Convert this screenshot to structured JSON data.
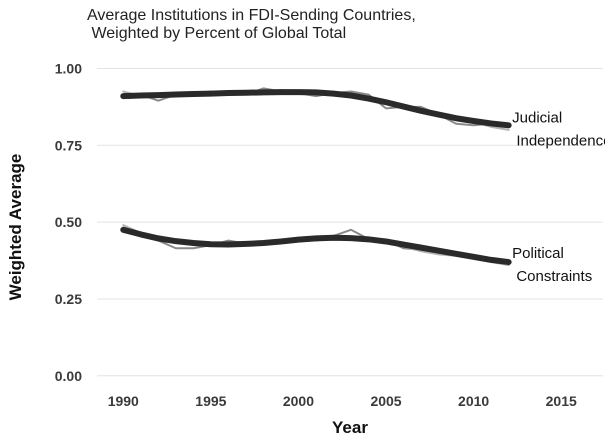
{
  "chart_data": {
    "type": "line",
    "title_lines": [
      "Average Institutions in FDI-Sending Countries,",
      " Weighted by Percent of Global Total"
    ],
    "xlabel": "Year",
    "ylabel": "Weighted Average",
    "xlim": [
      1988.5,
      2017.5
    ],
    "ylim": [
      -0.03,
      1.06
    ],
    "x_ticks": [
      1990,
      1995,
      2000,
      2005,
      2010,
      2015
    ],
    "y_ticks": [
      0.0,
      0.25,
      0.5,
      0.75,
      1.0
    ],
    "x_tick_labels": [
      "1990",
      "1995",
      "2000",
      "2005",
      "2010",
      "2015"
    ],
    "y_tick_labels": [
      "0.00",
      "0.25",
      "0.50",
      "0.75",
      "1.00"
    ],
    "grid": "horizontal",
    "legend": "none",
    "series": [
      {
        "name": "Judicial Independence",
        "style": "raw",
        "color": "#8a8a8a",
        "x": [
          1990,
          1991,
          1992,
          1993,
          1994,
          1995,
          1996,
          1997,
          1998,
          1999,
          2000,
          2001,
          2002,
          2003,
          2004,
          2005,
          2006,
          2007,
          2008,
          2009,
          2010,
          2011,
          2012
        ],
        "y": [
          0.91,
          0.915,
          0.895,
          0.915,
          0.915,
          0.925,
          0.92,
          0.915,
          0.935,
          0.925,
          0.92,
          0.91,
          0.92,
          0.925,
          0.915,
          0.87,
          0.875,
          0.875,
          0.85,
          0.82,
          0.815,
          0.82,
          0.82
        ]
      },
      {
        "name": "Judicial Independence",
        "style": "raw",
        "color": "#b5b5b5",
        "x": [
          1990,
          1991,
          1992,
          1993,
          1994,
          1995,
          1996,
          1997,
          1998,
          1999,
          2000,
          2001,
          2002,
          2003,
          2004,
          2005,
          2006,
          2007,
          2008,
          2009,
          2010,
          2011,
          2012
        ],
        "y": [
          0.925,
          0.91,
          0.915,
          0.91,
          0.92,
          0.915,
          0.925,
          0.925,
          0.92,
          0.93,
          0.925,
          0.925,
          0.915,
          0.91,
          0.905,
          0.89,
          0.87,
          0.86,
          0.845,
          0.835,
          0.825,
          0.81,
          0.8
        ]
      },
      {
        "name": "Judicial Independence",
        "style": "smooth",
        "color": "#2a2a2a",
        "x": [
          1990,
          1991,
          1992,
          1993,
          1994,
          1995,
          1996,
          1997,
          1998,
          1999,
          2000,
          2001,
          2002,
          2003,
          2004,
          2005,
          2006,
          2007,
          2008,
          2009,
          2010,
          2011,
          2012
        ],
        "y": [
          0.91,
          0.912,
          0.913,
          0.915,
          0.917,
          0.918,
          0.92,
          0.921,
          0.922,
          0.923,
          0.923,
          0.922,
          0.918,
          0.912,
          0.902,
          0.89,
          0.876,
          0.862,
          0.85,
          0.838,
          0.829,
          0.821,
          0.815
        ]
      },
      {
        "name": "Political Constraints",
        "style": "raw",
        "color": "#8a8a8a",
        "x": [
          1990,
          1991,
          1992,
          1993,
          1994,
          1995,
          1996,
          1997,
          1998,
          1999,
          2000,
          2001,
          2002,
          2003,
          2004,
          2005,
          2006,
          2007,
          2008,
          2009,
          2010,
          2011,
          2012
        ],
        "y": [
          0.475,
          0.455,
          0.44,
          0.415,
          0.415,
          0.425,
          0.44,
          0.43,
          0.435,
          0.44,
          0.445,
          0.44,
          0.455,
          0.475,
          0.445,
          0.44,
          0.415,
          0.41,
          0.4,
          0.4,
          0.39,
          0.38,
          0.375
        ]
      },
      {
        "name": "Political Constraints",
        "style": "raw",
        "color": "#b5b5b5",
        "x": [
          1990,
          1991,
          1992,
          1993,
          1994,
          1995,
          1996,
          1997,
          1998,
          1999,
          2000,
          2001,
          2002,
          2003,
          2004,
          2005,
          2006,
          2007,
          2008,
          2009,
          2010,
          2011,
          2012
        ],
        "y": [
          0.49,
          0.465,
          0.45,
          0.435,
          0.43,
          0.43,
          0.43,
          0.435,
          0.435,
          0.44,
          0.445,
          0.45,
          0.45,
          0.445,
          0.445,
          0.435,
          0.42,
          0.405,
          0.395,
          0.39,
          0.38,
          0.37,
          0.36
        ]
      },
      {
        "name": "Political Constraints",
        "style": "smooth",
        "color": "#2a2a2a",
        "x": [
          1990,
          1991,
          1992,
          1993,
          1994,
          1995,
          1996,
          1997,
          1998,
          1999,
          2000,
          2001,
          2002,
          2003,
          2004,
          2005,
          2006,
          2007,
          2008,
          2009,
          2010,
          2011,
          2012
        ],
        "y": [
          0.475,
          0.46,
          0.447,
          0.438,
          0.432,
          0.428,
          0.427,
          0.429,
          0.432,
          0.437,
          0.443,
          0.447,
          0.449,
          0.448,
          0.444,
          0.437,
          0.427,
          0.417,
          0.407,
          0.397,
          0.387,
          0.377,
          0.37
        ]
      }
    ],
    "annotations": [
      {
        "lines": [
          "Judicial",
          " Independence"
        ],
        "x": 2012.2,
        "y": 0.84
      },
      {
        "lines": [
          "Political",
          " Constraints"
        ],
        "x": 2012.2,
        "y": 0.4
      }
    ]
  }
}
